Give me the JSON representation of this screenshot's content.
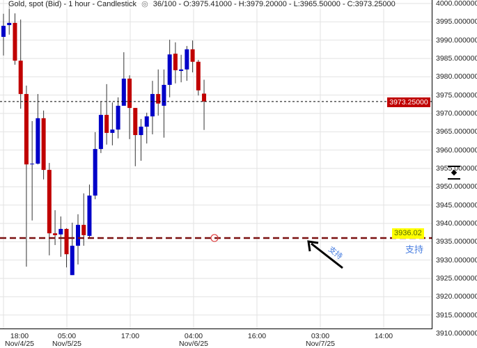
{
  "header": {
    "title": "Gold, spot (Bid) - 1 hour - Candlestick",
    "eye_icon": "eye-icon",
    "counter": "36/100",
    "ohlc": "- O:3975.41000 - H:3979.20000 - L:3965.50000 - C:3973.25000"
  },
  "colors": {
    "bull": "#0000c8",
    "bear": "#c00000",
    "wick": "#333333",
    "support": "#7a1010",
    "current_price": "#c00000",
    "highlight": "#ffff00",
    "annotation": "#4a7fe0"
  },
  "y_axis": {
    "labels": [
      "4000.000000",
      "3995.000000",
      "3990.000000",
      "3985.000000",
      "3980.000000",
      "3975.000000",
      "3970.000000",
      "3965.000000",
      "3960.000000",
      "3955.000000",
      "3950.000000",
      "3945.000000",
      "3940.000000",
      "3935.000000",
      "3930.000000",
      "3925.000000",
      "3920.000000",
      "3915.000000",
      "3910.000000"
    ]
  },
  "x_axis": {
    "labels": [
      [
        "18:00",
        "Nov/4/25"
      ],
      [
        "05:00",
        "Nov/5/25"
      ],
      [
        "17:00",
        ""
      ],
      [
        "04:00",
        "Nov/6/25"
      ],
      [
        "16:00",
        ""
      ],
      [
        "03:00",
        "Nov/7/25"
      ],
      [
        "14:00",
        ""
      ]
    ]
  },
  "current_price": {
    "label": "3973.25000",
    "value": 3973.25
  },
  "support": {
    "value": 3936.02,
    "label": "3936.02",
    "text": "支持",
    "arrow_text": "支持"
  },
  "scroll_icon": "scroll-to-price-icon",
  "chart_data": {
    "type": "candlestick",
    "title": "Gold, spot (Bid) - 1 hour - Candlestick",
    "ylim": [
      3910,
      4000
    ],
    "grid": true,
    "candles": [
      [
        3990.9,
        3997.2,
        3985.8,
        3993.9
      ],
      [
        3994.1,
        4000.6,
        3991.5,
        3994.7
      ],
      [
        3994.7,
        3997.3,
        3983.3,
        3984.4
      ],
      [
        3984.4,
        3995.6,
        3971.3,
        3975.3
      ],
      [
        3975.3,
        3977.6,
        3928.2,
        3956.1
      ],
      [
        3956.3,
        3967.9,
        3940.8,
        3956.3
      ],
      [
        3956.3,
        3975.3,
        3956.1,
        3968.7
      ],
      [
        3968.7,
        3970.8,
        3952.0,
        3954.6
      ],
      [
        3954.6,
        3956.5,
        3931.3,
        3937.3
      ],
      [
        3937.3,
        3943.6,
        3934.1,
        3936.8
      ],
      [
        3937.0,
        3941.9,
        3930.9,
        3938.5
      ],
      [
        3938.5,
        3938.7,
        3928.0,
        3931.6
      ],
      [
        3925.9,
        3940.2,
        3925.9,
        3933.9
      ],
      [
        3933.9,
        3942.5,
        3928.8,
        3939.6
      ],
      [
        3939.6,
        3948.2,
        3933.9,
        3936.8
      ],
      [
        3936.6,
        3950.6,
        3936.0,
        3947.6
      ],
      [
        3947.6,
        3964.9,
        3946.6,
        3960.3
      ],
      [
        3960.3,
        3973.2,
        3959.2,
        3969.6
      ],
      [
        3969.6,
        3978.0,
        3961.5,
        3964.7
      ],
      [
        3964.7,
        3973.0,
        3961.3,
        3965.6
      ],
      [
        3965.6,
        3974.4,
        3963.2,
        3972.1
      ],
      [
        3972.1,
        3986.7,
        3972.1,
        3979.5
      ],
      [
        3979.5,
        3980.4,
        3963.0,
        3971.5
      ],
      [
        3971.5,
        3971.5,
        3955.6,
        3964.1
      ],
      [
        3964.1,
        3968.5,
        3957.1,
        3966.4
      ],
      [
        3966.4,
        3970.2,
        3961.8,
        3969.2
      ],
      [
        3969.2,
        3978.9,
        3964.3,
        3975.3
      ],
      [
        3975.3,
        3982.0,
        3969.4,
        3972.7
      ],
      [
        3972.1,
        3982.0,
        3963.4,
        3977.8
      ],
      [
        3977.8,
        3990.1,
        3974.4,
        3986.1
      ],
      [
        3986.3,
        3989.4,
        3978.2,
        3981.8
      ],
      [
        3981.6,
        3986.0,
        3978.5,
        3982.0
      ],
      [
        3982.0,
        3988.4,
        3978.9,
        3987.5
      ],
      [
        3987.5,
        3989.9,
        3981.2,
        3984.1
      ],
      [
        3984.1,
        3984.6,
        3974.9,
        3976.3
      ],
      [
        3975.41,
        3979.2,
        3965.5,
        3973.25
      ]
    ],
    "candle_fields": [
      "open",
      "high",
      "low",
      "close"
    ]
  }
}
